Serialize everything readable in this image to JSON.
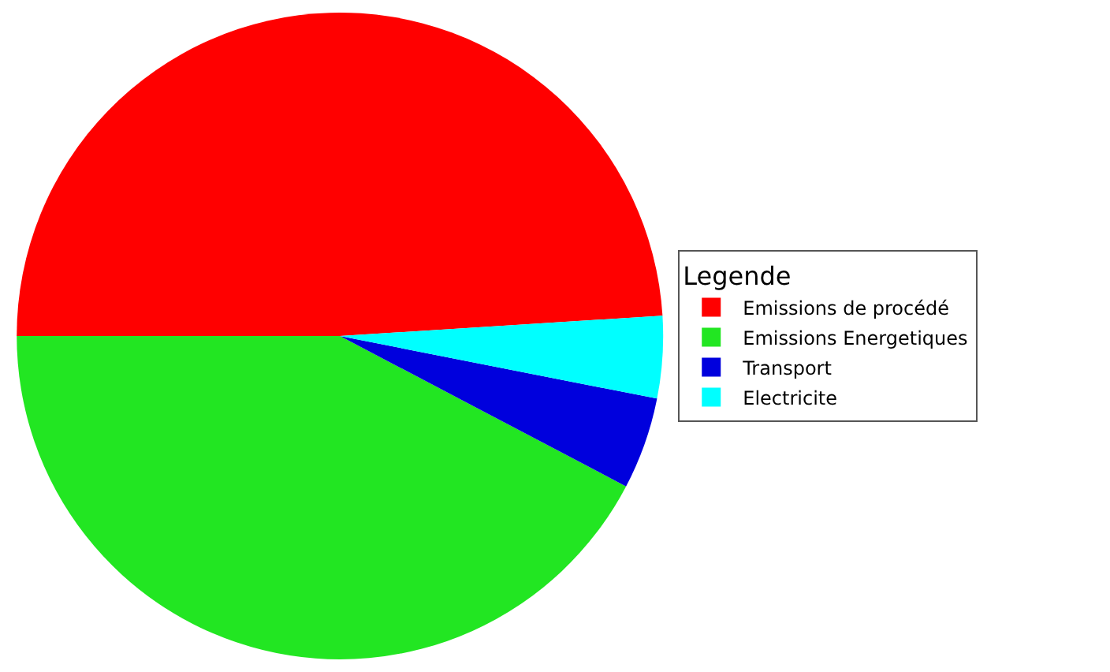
{
  "chart_data": {
    "type": "pie",
    "legend_title": "Legende",
    "legend": "right",
    "categories": [
      "Emissions de procédé",
      "Emissions Energetiques",
      "Transport",
      "Electricite"
    ],
    "values": [
      49,
      42.3,
      4.6,
      4.1
    ],
    "colors": [
      "#ff0000",
      "#22e622",
      "#0000dd",
      "#00ffff"
    ]
  }
}
